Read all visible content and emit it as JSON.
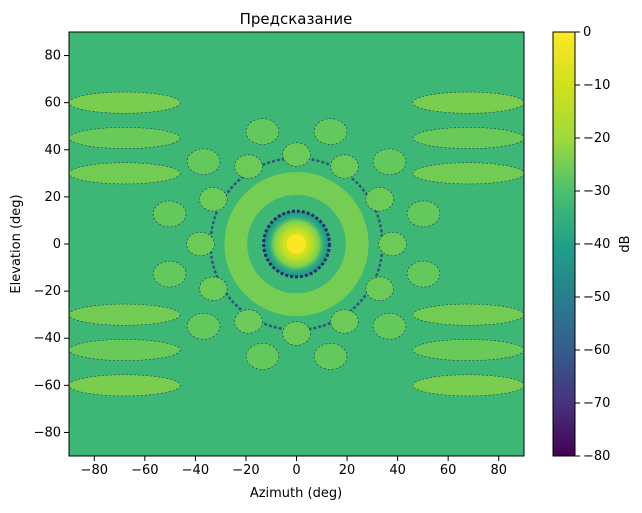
{
  "chart_data": {
    "type": "heatmap",
    "title": "Предсказание",
    "xlabel": "Azimuth (deg)",
    "ylabel": "Elevation (deg)",
    "xlim": [
      -90,
      90
    ],
    "ylim": [
      -90,
      90
    ],
    "x_ticks": [
      -80,
      -60,
      -40,
      -20,
      0,
      20,
      40,
      60,
      80
    ],
    "y_ticks": [
      -80,
      -60,
      -40,
      -20,
      0,
      20,
      40,
      60,
      80
    ],
    "colorbar": {
      "label": "dB",
      "range": [
        -80,
        0
      ],
      "ticks": [
        0,
        -10,
        -20,
        -30,
        -40,
        -50,
        -60,
        -70,
        -80
      ],
      "colormap": "viridis"
    },
    "background_level_db": -33,
    "main_lobe": {
      "center": [
        0,
        0
      ],
      "peak_db": 0,
      "ring_null_radius_deg": 13
    },
    "second_ring": {
      "radius_deg": 24,
      "level_db": -25
    },
    "outer_null_ring_radius_deg": 34,
    "lobe_ring_3": {
      "radius_deg": 38,
      "level_db": -26,
      "count": 12
    },
    "lobe_ring_4": {
      "radius_deg": 52,
      "level_db": -27,
      "count": 12
    },
    "horizontal_side_bands": [
      {
        "elevation": 60,
        "level_db": -24
      },
      {
        "elevation": 45,
        "level_db": -26
      },
      {
        "elevation": 30,
        "level_db": -25
      },
      {
        "elevation": -30,
        "level_db": -25
      },
      {
        "elevation": -45,
        "level_db": -26
      },
      {
        "elevation": -60,
        "level_db": -24
      }
    ],
    "pattern_symmetry": "approximately 6-fold around boresight"
  }
}
